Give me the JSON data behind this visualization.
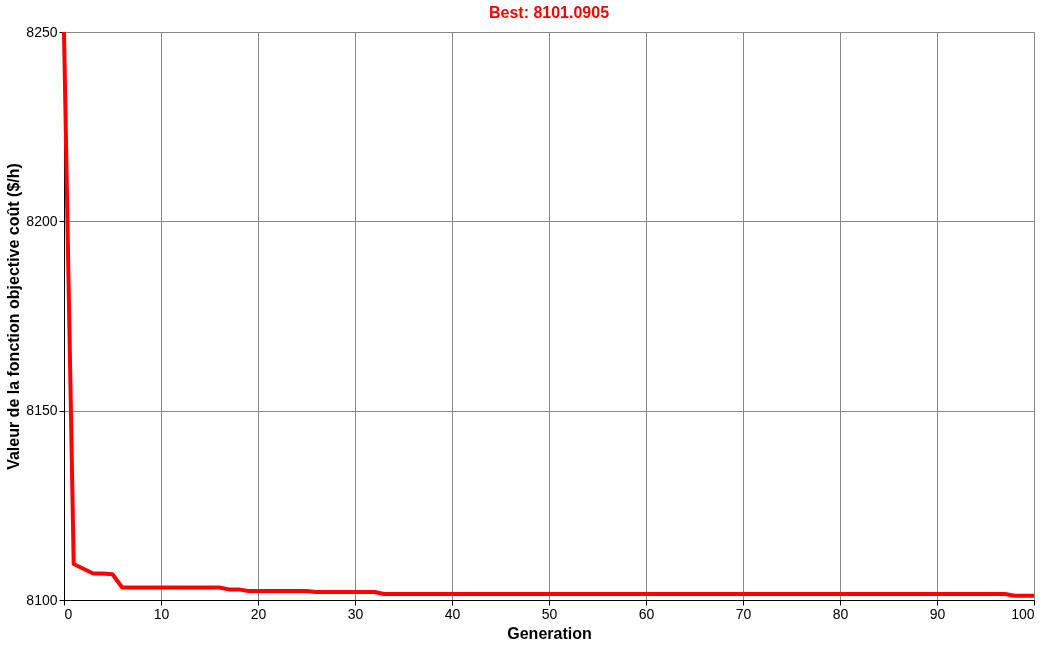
{
  "chart_data": {
    "type": "line",
    "title": "Best: 8101.0905",
    "xlabel": "Generation",
    "ylabel": "Valeur de la fonction objective coût ($/h)",
    "x": [
      0,
      1,
      3,
      4,
      5,
      6,
      16,
      17,
      18,
      19,
      25,
      26,
      32,
      33,
      97,
      98,
      100
    ],
    "series": [
      {
        "color": "#ff0000",
        "values": [
          8250,
          8109.5,
          8107,
          8107,
          8106.8,
          8103.3,
          8103.3,
          8102.8,
          8102.8,
          8102.4,
          8102.4,
          8102.1,
          8102.1,
          8101.6,
          8101.6,
          8101.1,
          8101.1
        ]
      }
    ],
    "xlim": [
      0,
      100
    ],
    "ylim": [
      8100,
      8250
    ],
    "xticks": [
      0,
      10,
      20,
      30,
      40,
      50,
      60,
      70,
      80,
      90,
      100
    ],
    "yticks": [
      8100,
      8150,
      8200,
      8250
    ],
    "grid": true,
    "legend": false,
    "marker": "none",
    "line_style": "solid"
  }
}
